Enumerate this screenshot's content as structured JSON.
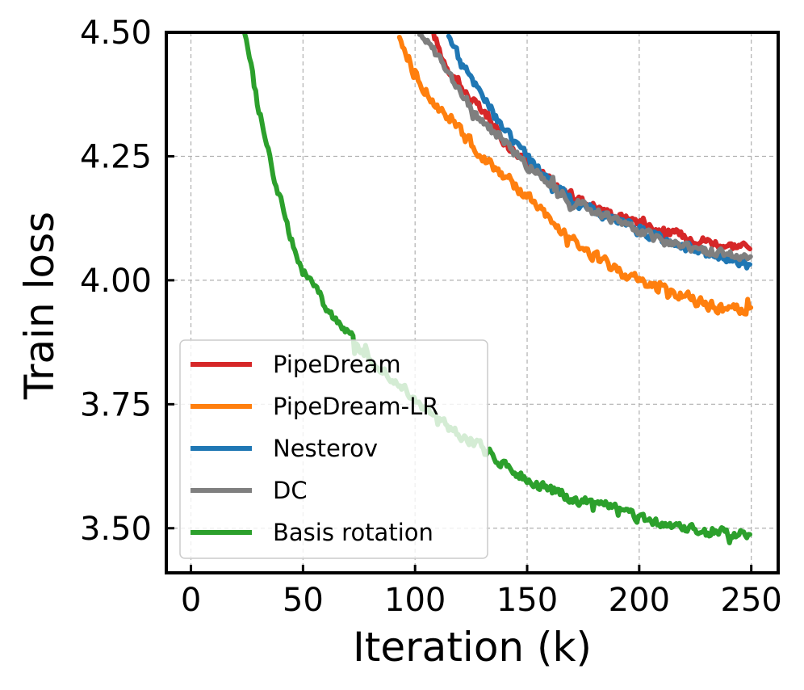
{
  "chart_data": {
    "type": "line",
    "title": "",
    "xlabel": "Iteration (k)",
    "ylabel": "Train loss",
    "xlim": [
      -11,
      262
    ],
    "ylim": [
      3.41,
      4.5
    ],
    "xticks": [
      0,
      50,
      100,
      150,
      200,
      250
    ],
    "xtick_labels": [
      "0",
      "50",
      "100",
      "150",
      "200",
      "250"
    ],
    "yticks": [
      3.5,
      3.75,
      4.0,
      4.25,
      4.5
    ],
    "ytick_labels": [
      "3.50",
      "3.75",
      "4.00",
      "4.25",
      "4.50"
    ],
    "grid": true,
    "legend_position": "lower-left",
    "series": [
      {
        "name": "PipeDream",
        "color": "#d62728",
        "x": [
          108,
          112,
          120,
          130,
          140,
          150,
          160,
          170,
          180,
          190,
          200,
          210,
          220,
          230,
          240,
          250
        ],
        "y": [
          4.5,
          4.45,
          4.39,
          4.34,
          4.28,
          4.24,
          4.2,
          4.17,
          4.15,
          4.13,
          4.12,
          4.1,
          4.09,
          4.08,
          4.07,
          4.07
        ],
        "noise": 0.013
      },
      {
        "name": "PipeDream-LR",
        "color": "#ff7f0e",
        "x": [
          93,
          100,
          110,
          120,
          130,
          140,
          150,
          160,
          170,
          180,
          190,
          200,
          210,
          220,
          230,
          240,
          250
        ],
        "y": [
          4.5,
          4.41,
          4.35,
          4.3,
          4.25,
          4.21,
          4.17,
          4.12,
          4.08,
          4.05,
          4.02,
          4.0,
          3.98,
          3.97,
          3.95,
          3.94,
          3.94
        ],
        "noise": 0.015
      },
      {
        "name": "Nesterov",
        "color": "#1f77b4",
        "x": [
          115,
          120,
          130,
          140,
          150,
          160,
          170,
          180,
          190,
          200,
          210,
          220,
          230,
          240,
          250
        ],
        "y": [
          4.5,
          4.44,
          4.38,
          4.3,
          4.25,
          4.2,
          4.16,
          4.14,
          4.12,
          4.1,
          4.08,
          4.07,
          4.05,
          4.04,
          4.03
        ],
        "noise": 0.015
      },
      {
        "name": "DC",
        "color": "#7f7f7f",
        "x": [
          102,
          110,
          120,
          130,
          140,
          150,
          160,
          170,
          180,
          190,
          200,
          210,
          220,
          230,
          240,
          250
        ],
        "y": [
          4.5,
          4.45,
          4.38,
          4.32,
          4.28,
          4.23,
          4.2,
          4.16,
          4.14,
          4.12,
          4.1,
          4.08,
          4.07,
          4.06,
          4.05,
          4.05
        ],
        "noise": 0.013
      },
      {
        "name": "Basis rotation",
        "color": "#2ca02c",
        "x": [
          24,
          30,
          35,
          40,
          45,
          50,
          60,
          70,
          80,
          90,
          100,
          110,
          120,
          130,
          140,
          150,
          160,
          170,
          180,
          190,
          200,
          210,
          220,
          230,
          240,
          250
        ],
        "y": [
          4.5,
          4.35,
          4.25,
          4.16,
          4.08,
          4.02,
          3.95,
          3.89,
          3.84,
          3.8,
          3.76,
          3.72,
          3.69,
          3.66,
          3.63,
          3.6,
          3.58,
          3.56,
          3.55,
          3.54,
          3.52,
          3.51,
          3.5,
          3.49,
          3.49,
          3.49
        ],
        "noise": 0.014
      }
    ]
  }
}
